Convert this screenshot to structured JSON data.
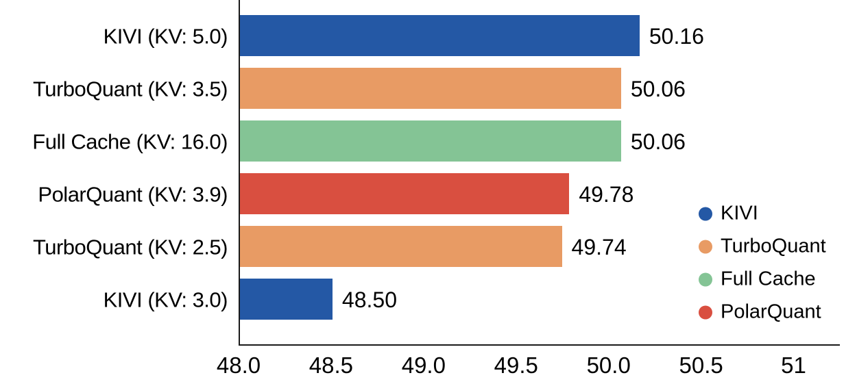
{
  "chart_data": {
    "type": "bar",
    "orientation": "horizontal",
    "title": "",
    "xlabel": "",
    "ylabel": "",
    "grid": false,
    "xlim": [
      48.0,
      51.25
    ],
    "bars": [
      {
        "category": "KIVI (KV: 5.0)",
        "series": "KIVI",
        "value": 50.16,
        "value_label": "50.16"
      },
      {
        "category": "TurboQuant (KV: 3.5)",
        "series": "TurboQuant",
        "value": 50.06,
        "value_label": "50.06"
      },
      {
        "category": "Full Cache (KV: 16.0)",
        "series": "Full Cache",
        "value": 50.06,
        "value_label": "50.06"
      },
      {
        "category": "PolarQuant (KV: 3.9)",
        "series": "PolarQuant",
        "value": 49.78,
        "value_label": "49.78"
      },
      {
        "category": "TurboQuant (KV: 2.5)",
        "series": "TurboQuant",
        "value": 49.74,
        "value_label": "49.74"
      },
      {
        "category": "KIVI (KV: 3.0)",
        "series": "KIVI",
        "value": 48.5,
        "value_label": "48.50"
      }
    ],
    "x_ticks": [
      {
        "value": 48.0,
        "label": "48.0"
      },
      {
        "value": 48.5,
        "label": "48.5"
      },
      {
        "value": 49.0,
        "label": "49.0"
      },
      {
        "value": 49.5,
        "label": "49.5"
      },
      {
        "value": 50.0,
        "label": "50.0"
      },
      {
        "value": 50.5,
        "label": "50.5"
      },
      {
        "value": 51.0,
        "label": "51"
      }
    ],
    "series_colors": {
      "KIVI": "#2458A5",
      "TurboQuant": "#E89B64",
      "Full Cache": "#84C495",
      "PolarQuant": "#D94F40"
    },
    "legend": {
      "position": "right",
      "entries": [
        {
          "label": "KIVI",
          "color": "#2458A5"
        },
        {
          "label": "TurboQuant",
          "color": "#E89B64"
        },
        {
          "label": "Full Cache",
          "color": "#84C495"
        },
        {
          "label": "PolarQuant",
          "color": "#D94F40"
        }
      ]
    },
    "axis_color": "#1a1a1a",
    "text_color": "#000000"
  }
}
